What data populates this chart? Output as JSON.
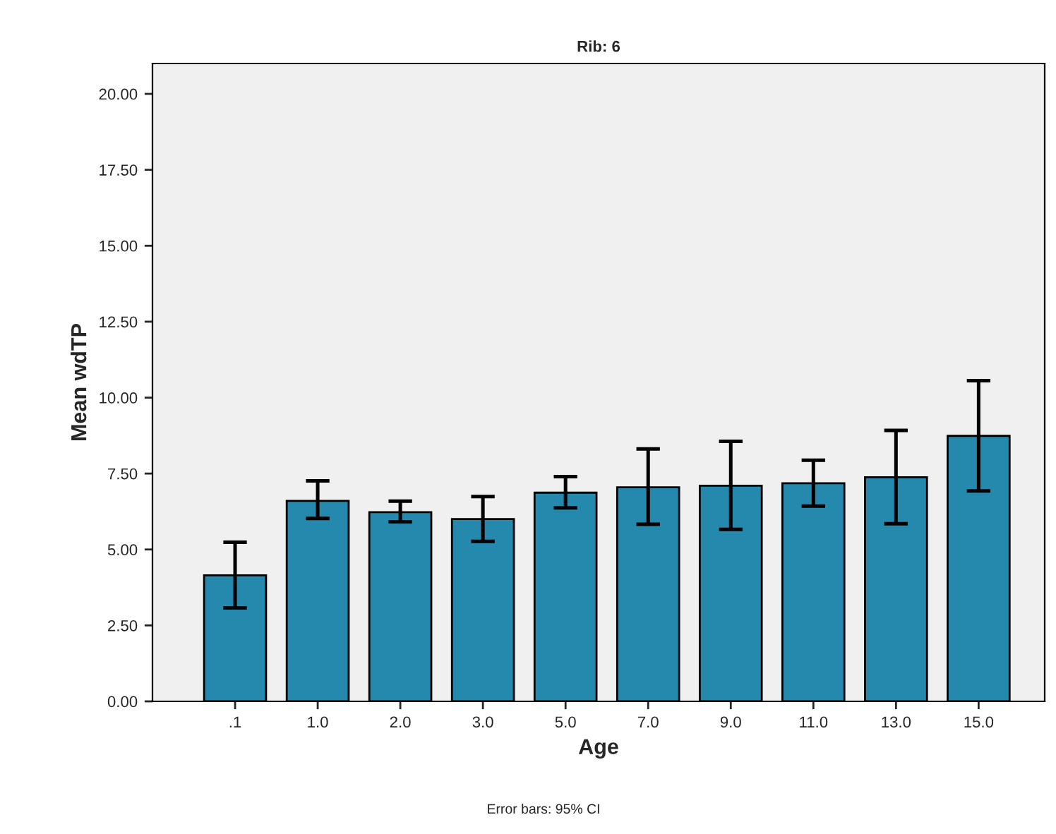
{
  "chart_data": {
    "type": "bar",
    "title": "Rib: 6",
    "xlabel": "Age",
    "ylabel": "Mean wdTP",
    "categories": [
      ".1",
      "1.0",
      "2.0",
      "3.0",
      "5.0",
      "7.0",
      "9.0",
      "11.0",
      "13.0",
      "15.0"
    ],
    "values": [
      4.15,
      6.6,
      6.23,
      6.0,
      6.87,
      7.05,
      7.1,
      7.18,
      7.38,
      8.74
    ],
    "errors": [
      [
        3.08,
        5.24
      ],
      [
        6.02,
        7.26
      ],
      [
        5.91,
        6.59
      ],
      [
        5.27,
        6.74
      ],
      [
        6.37,
        7.4
      ],
      [
        5.83,
        8.31
      ],
      [
        5.66,
        8.56
      ],
      [
        6.43,
        7.94
      ],
      [
        5.85,
        8.92
      ],
      [
        6.93,
        10.56
      ]
    ],
    "color": "#2589ad",
    "ylim": [
      0,
      21
    ],
    "yticks": [
      {
        "value": 0,
        "label": "0.00"
      },
      {
        "value": 2.5,
        "label": "2.50"
      },
      {
        "value": 5,
        "label": "5.00"
      },
      {
        "value": 7.5,
        "label": "7.50"
      },
      {
        "value": 10,
        "label": "10.00"
      },
      {
        "value": 12.5,
        "label": "12.50"
      },
      {
        "value": 15,
        "label": "15.00"
      },
      {
        "value": 17.5,
        "label": "17.50"
      },
      {
        "value": 20,
        "label": "20.00"
      }
    ],
    "grid": false,
    "annotations": [
      "Error bars: 95% CI"
    ]
  }
}
